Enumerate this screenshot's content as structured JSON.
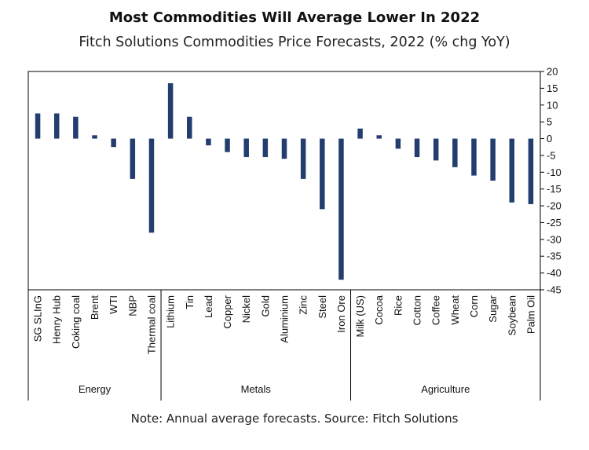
{
  "header": {
    "title": "Most Commodities Will Average Lower In 2022",
    "subtitle": "Fitch Solutions Commodities Price Forecasts, 2022 (% chg YoY)"
  },
  "footer": {
    "note": "Note: Annual average forecasts. Source: Fitch Solutions"
  },
  "chart_data": {
    "type": "bar",
    "title": "Most Commodities Will Average Lower In 2022",
    "subtitle": "Fitch Solutions Commodities Price Forecasts, 2022 (% chg YoY)",
    "xlabel": "",
    "ylabel": "",
    "ylim": [
      -45,
      20
    ],
    "yticks": [
      20,
      15,
      10,
      5,
      0,
      -5,
      -10,
      -15,
      -20,
      -25,
      -30,
      -35,
      -40,
      -45
    ],
    "y_axis_side": "right",
    "grid": false,
    "legend": "none",
    "bar_color": "#233d6e",
    "groups": [
      {
        "name": "Energy",
        "categories": [
          "SG SLInG",
          "Henry Hub",
          "Coking coal",
          "Brent",
          "WTI",
          "NBP",
          "Thermal coal"
        ],
        "values": [
          7.5,
          7.5,
          6.5,
          1,
          -2.5,
          -12,
          -28
        ]
      },
      {
        "name": "Metals",
        "categories": [
          "Lithium",
          "Tin",
          "Lead",
          "Copper",
          "Nickel",
          "Gold",
          "Aluminium",
          "Zinc",
          "Steel",
          "Iron Ore"
        ],
        "values": [
          16.5,
          6.5,
          -2,
          -4,
          -5.5,
          -5.5,
          -6,
          -12,
          -21,
          -42
        ]
      },
      {
        "name": "Agriculture",
        "categories": [
          "Milk (US)",
          "Cocoa",
          "Rice",
          "Cotton",
          "Coffee",
          "Wheat",
          "Corn",
          "Sugar",
          "Soybean",
          "Palm Oil"
        ],
        "values": [
          3,
          1,
          -3,
          -5.5,
          -6.5,
          -8.5,
          -11,
          -12.5,
          -19,
          -19.5
        ]
      }
    ]
  }
}
